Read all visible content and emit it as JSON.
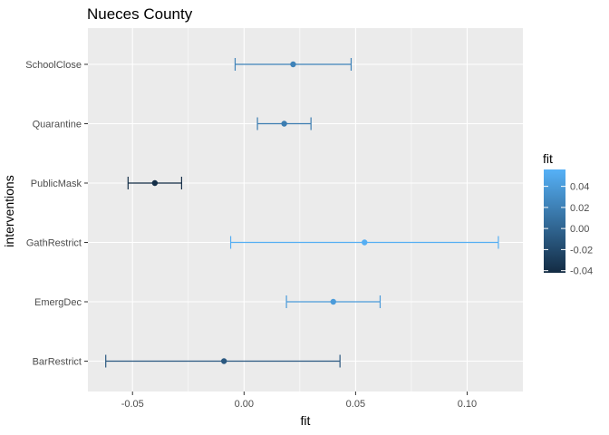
{
  "chart_data": {
    "type": "errorbar",
    "title": "Nueces County",
    "xlabel": "fit",
    "ylabel": "interventions",
    "xlim": [
      -0.07,
      0.125
    ],
    "x_ticks": [
      -0.05,
      0.0,
      0.05,
      0.1
    ],
    "x_tick_labels": [
      "-0.05",
      "0.00",
      "0.05",
      "0.10"
    ],
    "grid": true,
    "categories": [
      "SchoolClose",
      "Quarantine",
      "PublicMask",
      "GathRestrict",
      "EmergDec",
      "BarRestrict"
    ],
    "points": [
      {
        "label": "SchoolClose",
        "fit": 0.022,
        "lower": -0.004,
        "upper": 0.048
      },
      {
        "label": "Quarantine",
        "fit": 0.018,
        "lower": 0.006,
        "upper": 0.03
      },
      {
        "label": "PublicMask",
        "fit": -0.04,
        "lower": -0.052,
        "upper": -0.028
      },
      {
        "label": "GathRestrict",
        "fit": 0.054,
        "lower": -0.006,
        "upper": 0.114
      },
      {
        "label": "EmergDec",
        "fit": 0.04,
        "lower": 0.019,
        "upper": 0.061
      },
      {
        "label": "BarRestrict",
        "fit": -0.009,
        "lower": -0.062,
        "upper": 0.043
      }
    ],
    "legend": {
      "title": "fit",
      "position": "right",
      "range": [
        -0.042,
        0.056
      ],
      "ticks": [
        0.04,
        0.02,
        0.0,
        -0.02,
        -0.04
      ],
      "tick_labels": [
        "0.04",
        "0.02",
        "0.00",
        "-0.02",
        "-0.04"
      ],
      "color_low": "#132B43",
      "color_high": "#56B1F7"
    },
    "panel_background": "#EBEBEB",
    "grid_color": "#FFFFFF"
  }
}
